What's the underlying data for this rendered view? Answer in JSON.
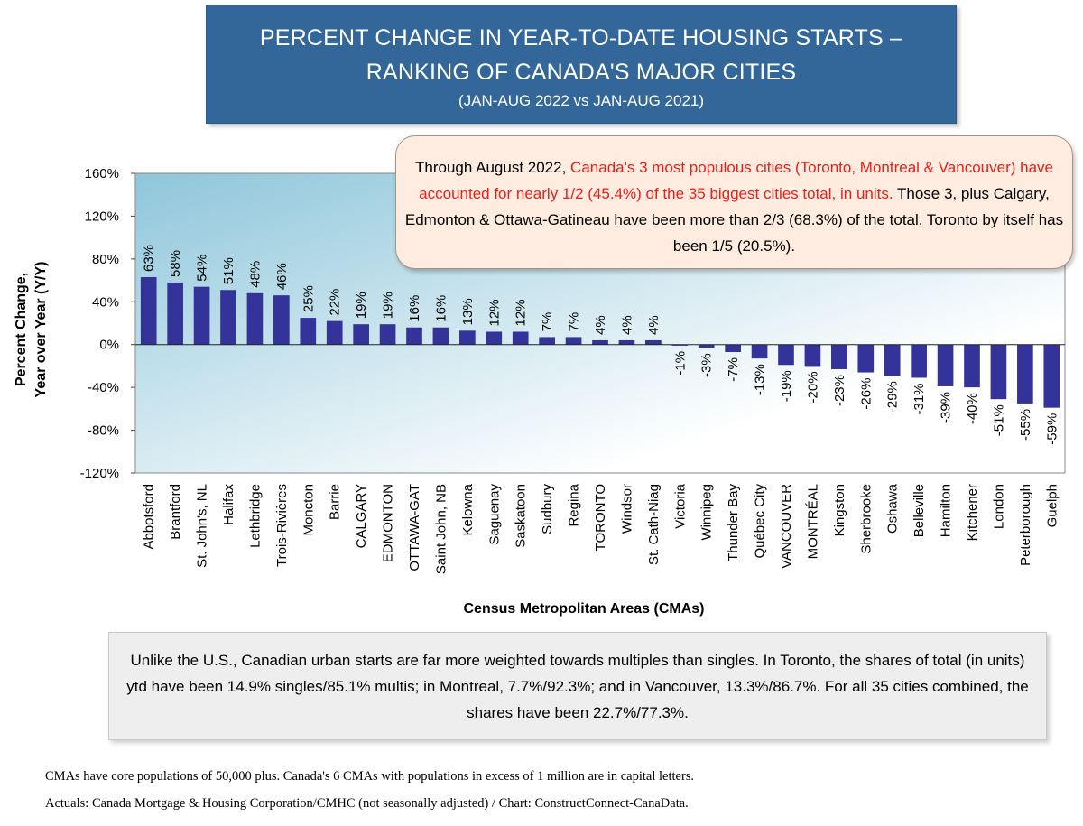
{
  "title": {
    "line1": "PERCENT CHANGE IN YEAR-TO-DATE HOUSING STARTS –",
    "line2": "RANKING OF CANADA'S MAJOR CITIES",
    "subtitle": "(JAN-AUG 2022 vs JAN-AUG 2021)"
  },
  "annotation": {
    "part1": "Through August 2022, ",
    "part2_red": "Canada's 3 most populous cities (Toronto, Montreal & Vancouver) have accounted for nearly 1/2 (45.4%) of the 35 biggest cities total, in units.",
    "part3": " Those 3, plus Calgary, Edmonton & Ottawa-Gatineau have been more than 2/3 (68.3%) of the total. Toronto by itself has been 1/5 (20.5%).",
    "colors": {
      "text": "#000000",
      "highlight": "#e8201b",
      "background": "#fdecdf"
    }
  },
  "note": "Unlike the U.S., Canadian urban starts are far more weighted towards multiples than singles. In Toronto, the shares of total (in units) ytd have been 14.9% singles/85.1% multis; in Montreal, 7.7%/92.3%; and in Vancouver, 13.3%/86.7%. For all 35 cities combined, the shares have been 22.7%/77.3%.",
  "footnotes": [
    "CMAs have core populations of 50,000 plus. Canada's 6 CMAs with populations in excess of 1 million are in capital letters.",
    "Actuals: Canada Mortgage & Housing Corporation/CMHC (not seasonally adjusted) / Chart: ConstructConnect-CanaData."
  ],
  "chart_data": {
    "type": "bar",
    "xlabel": "Census Metropolitan Areas (CMAs)",
    "ylabel_lines": [
      "Percent Change,",
      "Year over Year (Y/Y)"
    ],
    "ylim": [
      -120,
      160
    ],
    "yticks": [
      160,
      120,
      80,
      40,
      0,
      -40,
      -80,
      -120
    ],
    "ytick_labels": [
      "160%",
      "120%",
      "80%",
      "40%",
      "0%",
      "-40%",
      "-80%",
      "-120%"
    ],
    "grid": false,
    "bar_color": "#333399",
    "plot_gradient": [
      "#8ec6da",
      "#ffffff"
    ],
    "categories": [
      "Abbotsford",
      "Brantford",
      "St. John's, NL",
      "Halifax",
      "Lethbridge",
      "Trois-Rivières",
      "Moncton",
      "Barrie",
      "CALGARY",
      "EDMONTON",
      "OTTAWA-GAT",
      "Saint John, NB",
      "Kelowna",
      "Saguenay",
      "Saskatoon",
      "Sudbury",
      "Regina",
      "TORONTO",
      "Windsor",
      "St. Cath-Niag",
      "Victoria",
      "Winnipeg",
      "Thunder Bay",
      "Québec City",
      "VANCOUVER",
      "MONTRÉAL",
      "Kingston",
      "Sherbrooke",
      "Oshawa",
      "Belleville",
      "Hamilton",
      "Kitchener",
      "London",
      "Peterborough",
      "Guelph"
    ],
    "values": [
      63,
      58,
      54,
      51,
      48,
      46,
      25,
      22,
      19,
      19,
      16,
      16,
      13,
      12,
      12,
      7,
      7,
      4,
      4,
      4,
      -1,
      -3,
      -7,
      -13,
      -19,
      -20,
      -23,
      -26,
      -29,
      -31,
      -39,
      -40,
      -51,
      -55,
      -59
    ],
    "data_labels": [
      "63%",
      "58%",
      "54%",
      "51%",
      "48%",
      "46%",
      "25%",
      "22%",
      "19%",
      "19%",
      "16%",
      "16%",
      "13%",
      "12%",
      "12%",
      "7%",
      "7%",
      "4%",
      "4%",
      "4%",
      "-1%",
      "-3%",
      "-7%",
      "-13%",
      "-19%",
      "-20%",
      "-23%",
      "-26%",
      "-29%",
      "-31%",
      "-39%",
      "-40%",
      "-51%",
      "-55%",
      "-59%"
    ]
  }
}
